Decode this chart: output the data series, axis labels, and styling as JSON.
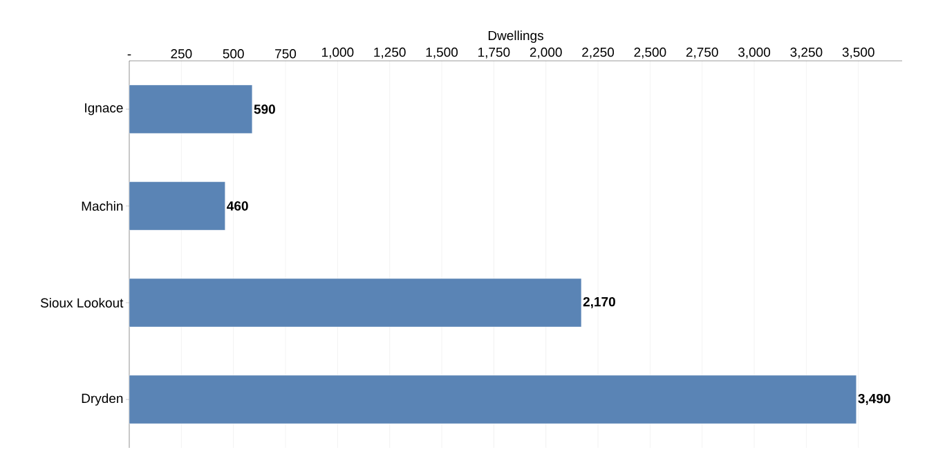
{
  "chart_data": {
    "type": "bar",
    "orientation": "horizontal",
    "xlabel": "Dwellings",
    "categories": [
      "Ignace",
      "Machin",
      "Sioux Lookout",
      "Dryden"
    ],
    "values": [
      590,
      460,
      2170,
      3490
    ],
    "value_labels": [
      "590",
      "460",
      "2,170",
      "3,490"
    ],
    "color": "#5a84b5",
    "xlim": [
      0,
      3710
    ],
    "xticks": [
      {
        "value": 0,
        "label": "-"
      },
      250,
      500,
      750,
      {
        "value": 1000,
        "label": "1,000"
      },
      {
        "value": 1250,
        "label": "1,250"
      },
      {
        "value": 1500,
        "label": "1,500"
      },
      {
        "value": 1750,
        "label": "1,750"
      },
      {
        "value": 2000,
        "label": "2,000"
      },
      {
        "value": 2250,
        "label": "2,250"
      },
      {
        "value": 2500,
        "label": "2,500"
      },
      {
        "value": 2750,
        "label": "2,750"
      },
      {
        "value": 3000,
        "label": "3,000"
      },
      {
        "value": 3250,
        "label": "3,250"
      },
      {
        "value": 3500,
        "label": "3,500"
      }
    ],
    "grid": "x"
  }
}
